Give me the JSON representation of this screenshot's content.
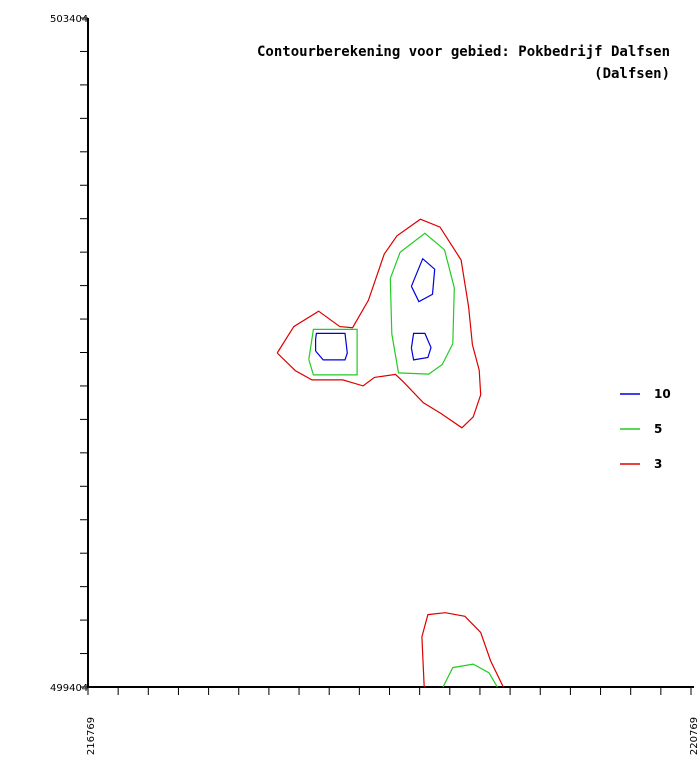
{
  "chart_data": {
    "type": "contour",
    "title": "Contourberekening voor gebied: Pokbedrijf Dalfsen",
    "subtitle": "(Dalfsen)",
    "xlabel": "",
    "ylabel": "",
    "xlim": [
      216769,
      220769
    ],
    "ylim": [
      499404,
      503404
    ],
    "x_tick_labels": [
      "216769",
      "220769"
    ],
    "y_tick_labels": [
      "503404",
      "499404"
    ],
    "x_minor_tick_step": 200,
    "y_minor_tick_step": 200,
    "legend_position": "right",
    "series": [
      {
        "name": "10",
        "color": "#0000dd",
        "contours": [
          [
            [
              218279,
              501413
            ],
            [
              218329,
              501360
            ],
            [
              218474,
              501360
            ],
            [
              218489,
              501401
            ],
            [
              218474,
              501518
            ],
            [
              218284,
              501518
            ],
            [
              218279,
              501485
            ],
            [
              218279,
              501413
            ]
          ],
          [
            [
              218914,
              501800
            ],
            [
              218989,
              501965
            ],
            [
              219069,
              501902
            ],
            [
              219054,
              501752
            ],
            [
              218964,
              501708
            ],
            [
              218914,
              501800
            ]
          ],
          [
            [
              218914,
              501431
            ],
            [
              218929,
              501360
            ],
            [
              219024,
              501374
            ],
            [
              219044,
              501434
            ],
            [
              219004,
              501518
            ],
            [
              218929,
              501518
            ],
            [
              218914,
              501431
            ]
          ]
        ]
      },
      {
        "name": "5",
        "color": "#22cc22",
        "contours": [
          [
            [
              218234,
              501362
            ],
            [
              218264,
              501270
            ],
            [
              218554,
              501270
            ],
            [
              218554,
              501542
            ],
            [
              218264,
              501542
            ],
            [
              218234,
              501362
            ]
          ],
          [
            [
              218774,
              501846
            ],
            [
              218839,
              502003
            ],
            [
              219004,
              502117
            ],
            [
              219134,
              502018
            ],
            [
              219199,
              501791
            ],
            [
              219189,
              501457
            ],
            [
              219119,
              501332
            ],
            [
              219029,
              501275
            ],
            [
              218829,
              501282
            ],
            [
              218784,
              501515
            ],
            [
              218774,
              501846
            ]
          ],
          [
            [
              219124,
              499404
            ],
            [
              219189,
              499520
            ],
            [
              219324,
              499541
            ],
            [
              219429,
              499489
            ],
            [
              219484,
              499404
            ]
          ]
        ]
      },
      {
        "name": "3",
        "color": "#dd0000",
        "contours": [
          [
            [
              218024,
              501401
            ],
            [
              218134,
              501559
            ],
            [
              218299,
              501651
            ],
            [
              218439,
              501559
            ],
            [
              218524,
              501552
            ],
            [
              218629,
              501716
            ],
            [
              218734,
              501992
            ],
            [
              218819,
              502102
            ],
            [
              218974,
              502201
            ],
            [
              219104,
              502154
            ],
            [
              219244,
              501957
            ],
            [
              219294,
              501677
            ],
            [
              219319,
              501451
            ],
            [
              219364,
              501299
            ],
            [
              219374,
              501151
            ],
            [
              219324,
              501019
            ],
            [
              219249,
              500954
            ],
            [
              219109,
              501040
            ],
            [
              218994,
              501103
            ],
            [
              218864,
              501226
            ],
            [
              218809,
              501273
            ],
            [
              218669,
              501255
            ],
            [
              218594,
              501204
            ],
            [
              218459,
              501240
            ],
            [
              218254,
              501240
            ],
            [
              218144,
              501296
            ],
            [
              218024,
              501401
            ]
          ],
          [
            [
              218999,
              499404
            ],
            [
              218984,
              499704
            ],
            [
              219024,
              499837
            ],
            [
              219139,
              499848
            ],
            [
              219269,
              499827
            ],
            [
              219374,
              499730
            ],
            [
              219439,
              499562
            ],
            [
              219524,
              499404
            ]
          ]
        ]
      }
    ]
  }
}
